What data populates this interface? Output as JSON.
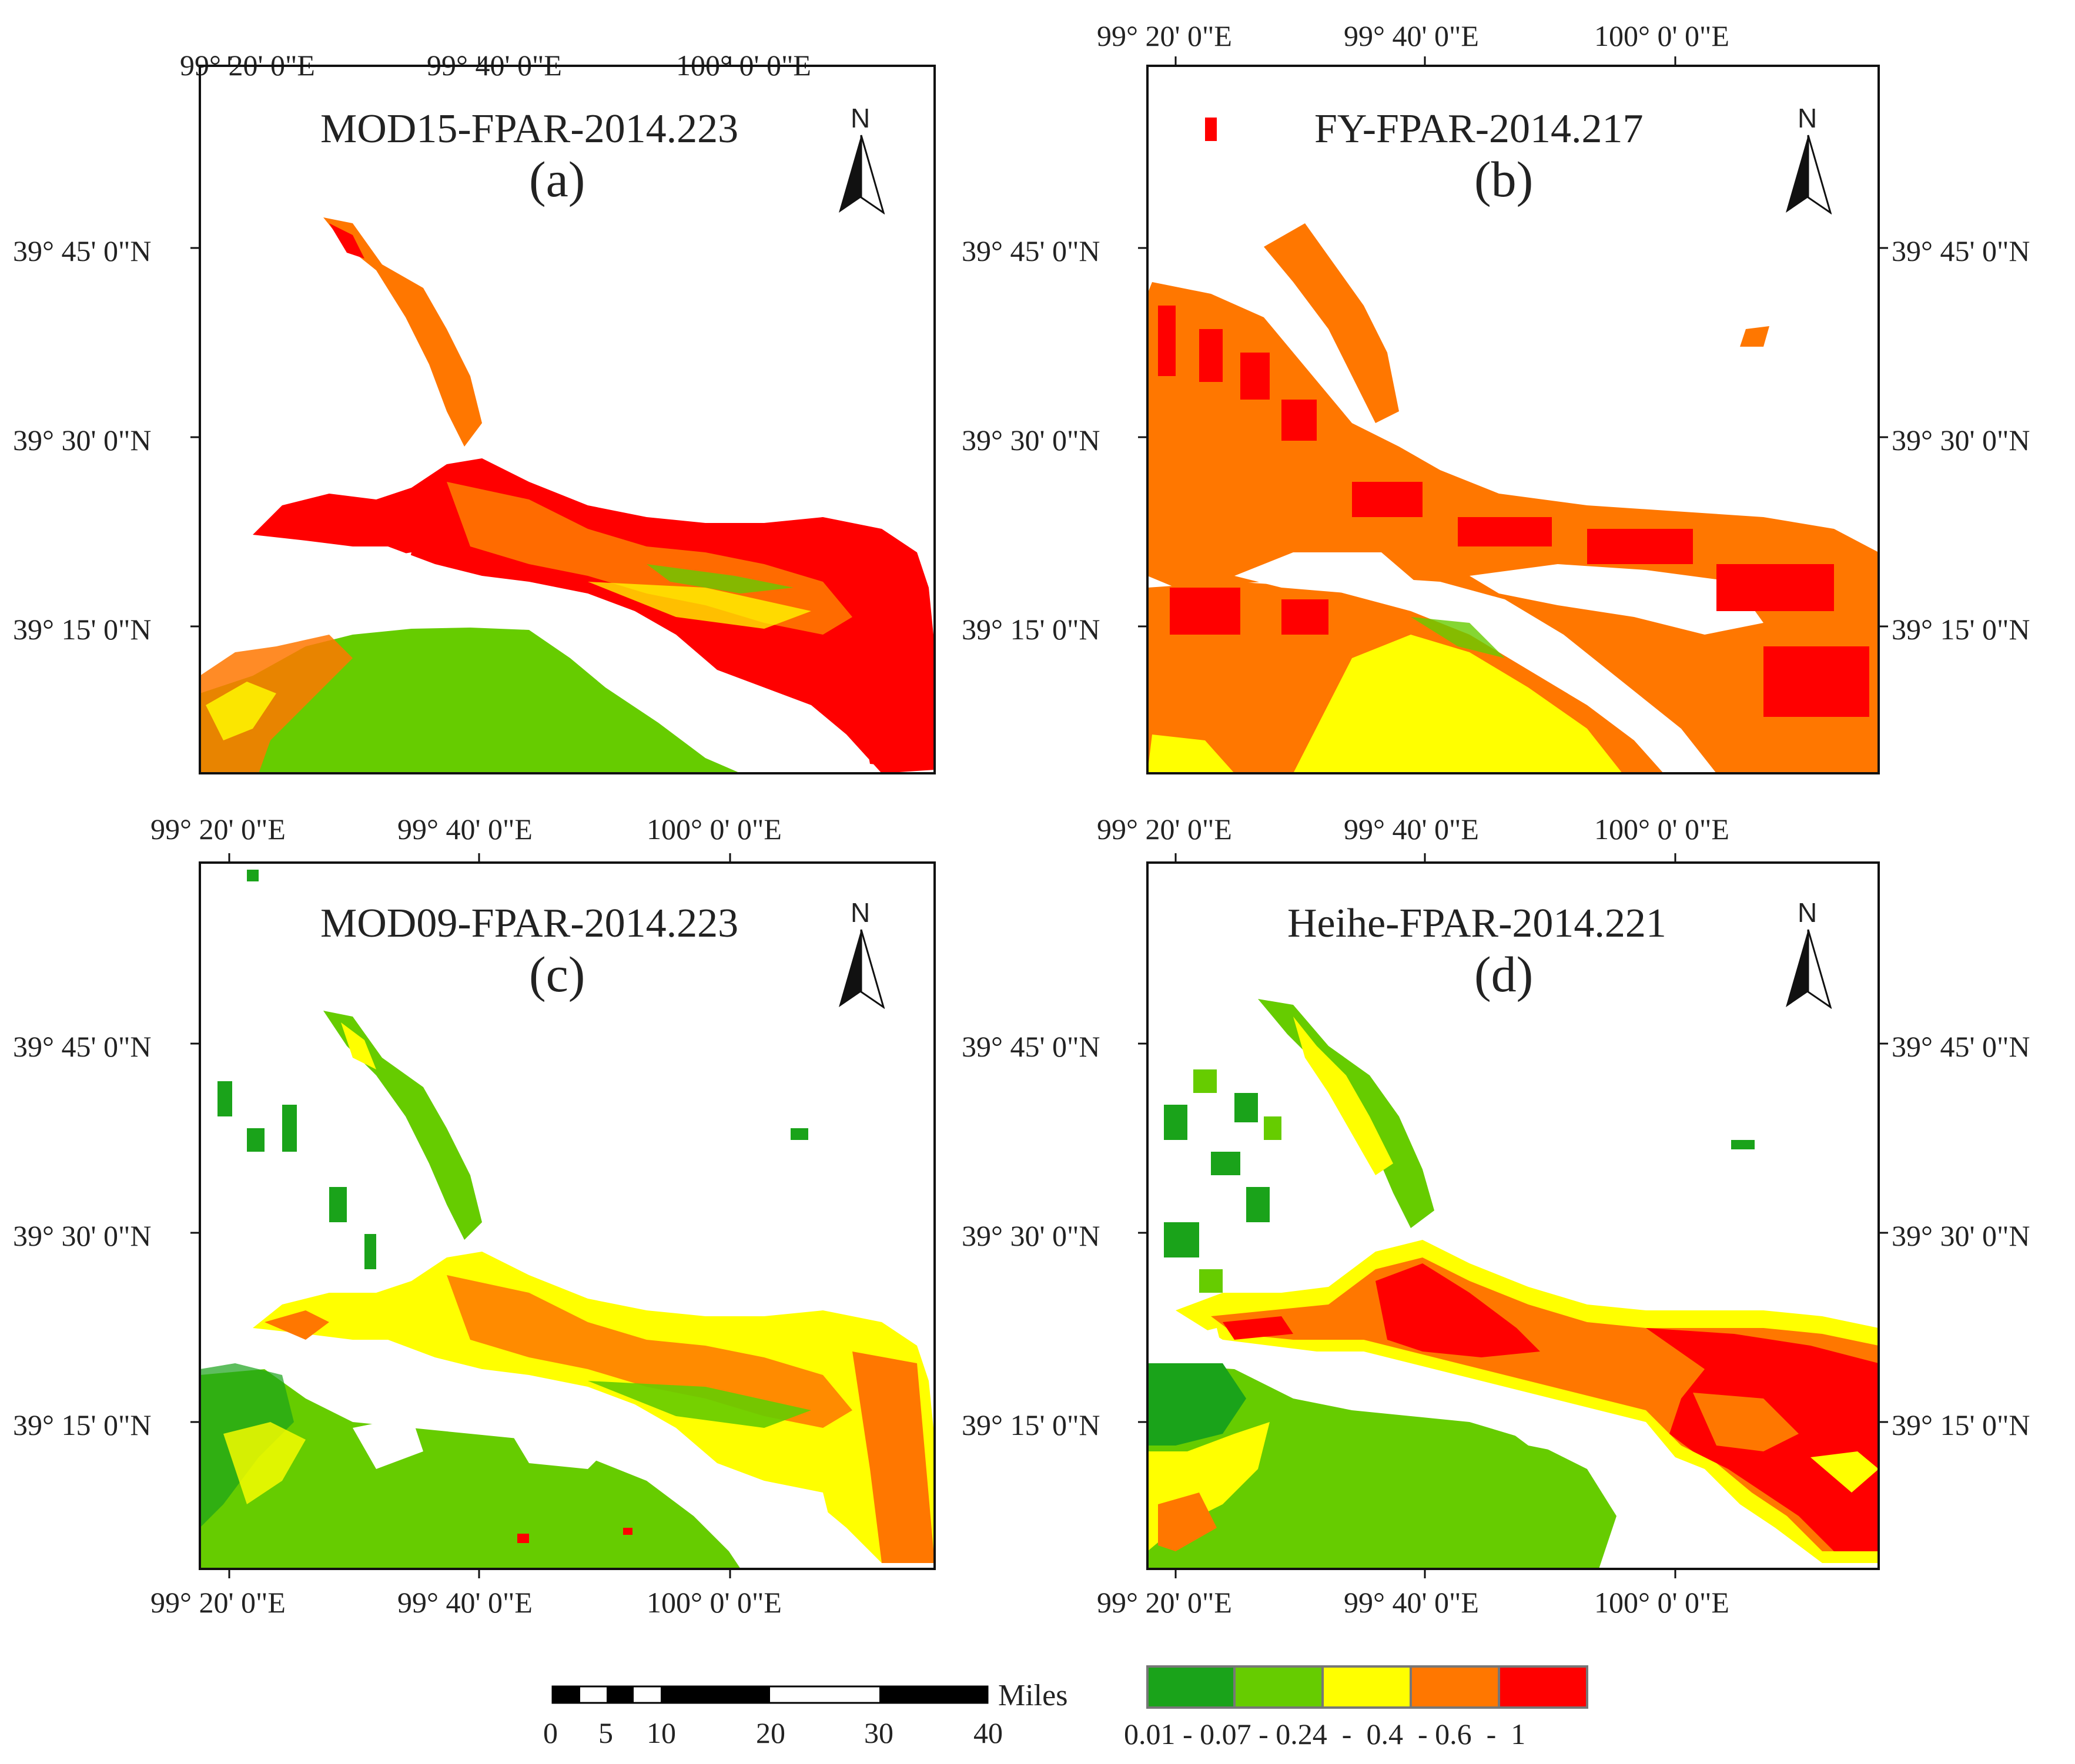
{
  "colors": {
    "class1": "#1aa31a",
    "class2": "#66cc00",
    "class3": "#ffff00",
    "class4": "#ff7700",
    "class5": "#ff0000"
  },
  "panels": [
    {
      "title": "MOD15-FPAR-2014.223",
      "label": "(a)"
    },
    {
      "title": "FY-FPAR-2014.217",
      "label": "(b)"
    },
    {
      "title": "MOD09-FPAR-2014.223",
      "label": "(c)"
    },
    {
      "title": "Heihe-FPAR-2014.221",
      "label": "(d)"
    }
  ],
  "axes": {
    "lon_ticks": [
      "99° 20' 0\"E",
      "99° 40' 0\"E",
      "100° 0' 0\"E"
    ],
    "lat_ticks": [
      "39° 45' 0\"N",
      "39° 30' 0\"N",
      "39° 15' 0\"N"
    ]
  },
  "north_arrow": {
    "letter": "N",
    "icon": "north-arrow-icon"
  },
  "scale_bar": {
    "unit": "Miles",
    "ticks": [
      "0",
      "5",
      "10",
      "20",
      "30",
      "40"
    ]
  },
  "legend": {
    "label_text": "0.01 - 0.07 - 0.24  -  0.4  - 0.6  -  1",
    "classes": [
      "0.01 - 0.07",
      "0.07 - 0.24",
      "0.24 - 0.4",
      "0.4 - 0.6",
      "0.6 - 1"
    ]
  }
}
